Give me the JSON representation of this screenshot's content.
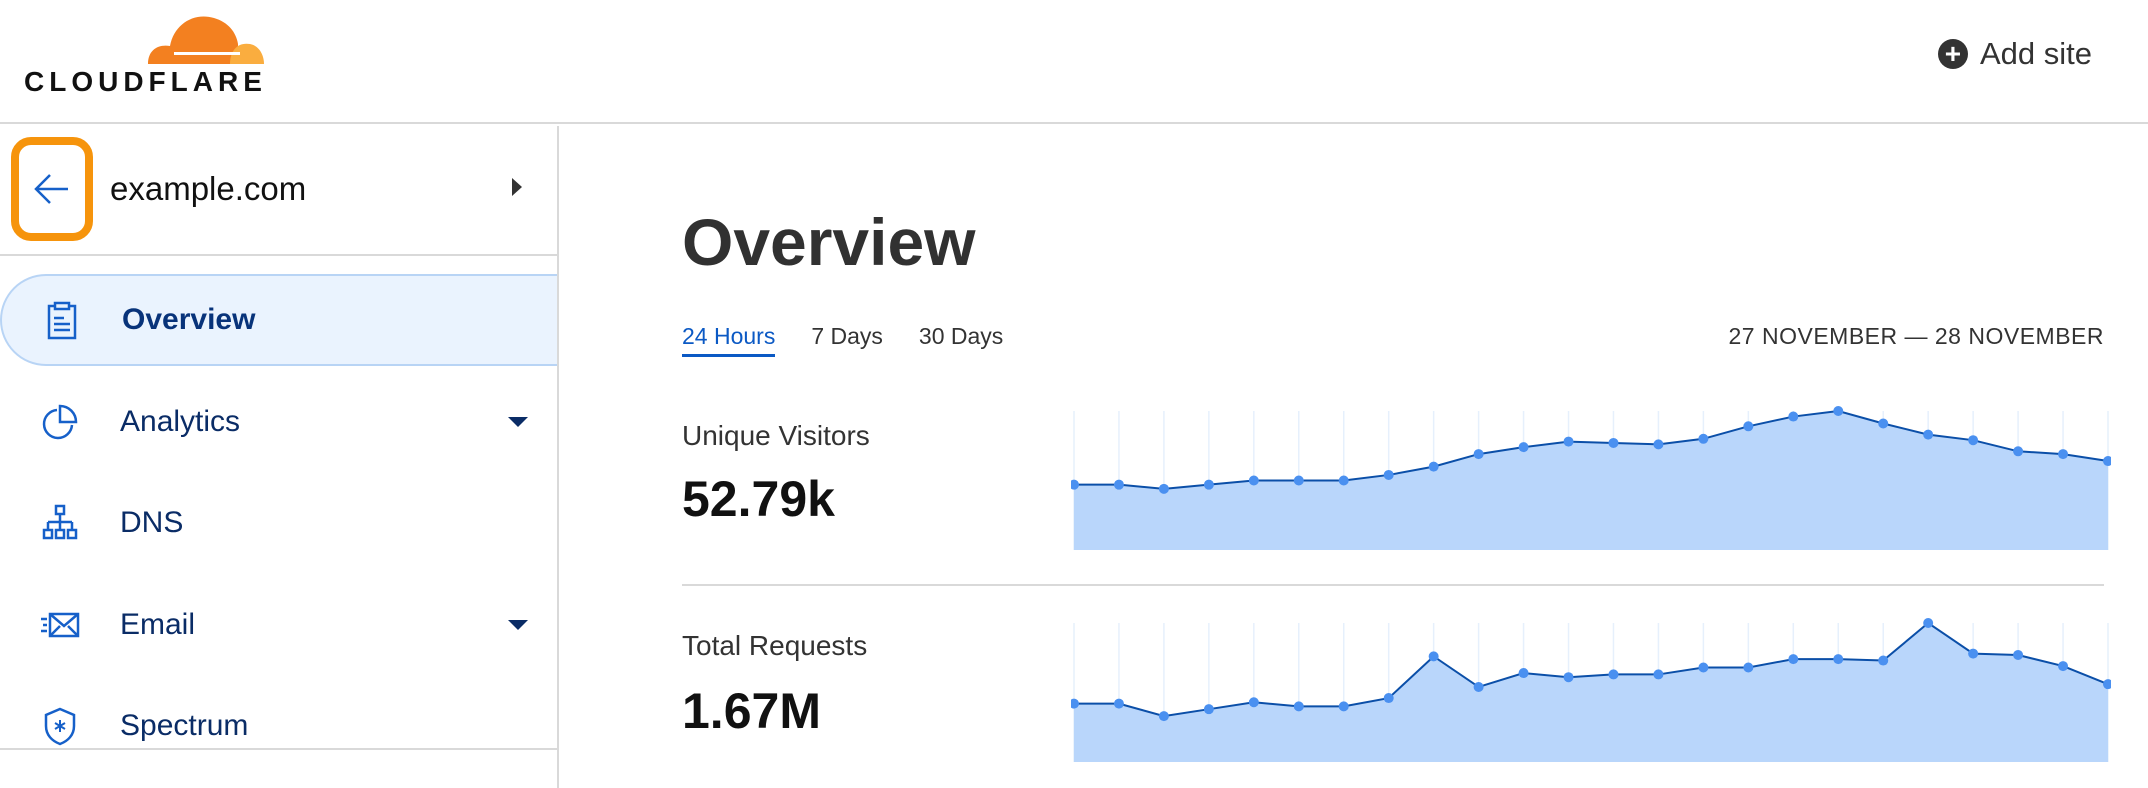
{
  "header": {
    "logo_text": "CLOUDFLARE",
    "add_site_label": "Add site",
    "brand_color": "#f38020"
  },
  "sidebar": {
    "domain": "example.com",
    "back_icon": "arrow-left-icon",
    "items": [
      {
        "label": "Overview",
        "icon": "clipboard-icon",
        "active": true
      },
      {
        "label": "Analytics",
        "icon": "pie-chart-icon",
        "dropdown": true
      },
      {
        "label": "DNS",
        "icon": "sitemap-icon"
      },
      {
        "label": "Email",
        "icon": "email-icon",
        "dropdown": true
      },
      {
        "label": "Spectrum",
        "icon": "shield-icon"
      }
    ]
  },
  "main": {
    "title": "Overview",
    "tabs": [
      {
        "label": "24 Hours",
        "active": true
      },
      {
        "label": "7 Days"
      },
      {
        "label": "30 Days"
      }
    ],
    "date_range": "27 NOVEMBER — 28 NOVEMBER",
    "metrics": [
      {
        "label": "Unique Visitors",
        "value": "52.79k"
      },
      {
        "label": "Total Requests",
        "value": "1.67M"
      }
    ]
  },
  "chart_data": [
    {
      "type": "area",
      "ylim": [
        0,
        100
      ],
      "grid": "vertical",
      "colors": {
        "fill": "#b9d6fb",
        "line": "#0b4fa8",
        "point": "#4a90f0"
      },
      "values": [
        47,
        47,
        44,
        47,
        50,
        50,
        50,
        54,
        60,
        69,
        74,
        78,
        77,
        76,
        80,
        89,
        96,
        100,
        91,
        83,
        79,
        71,
        69,
        64
      ]
    },
    {
      "type": "area",
      "ylim": [
        0,
        100
      ],
      "grid": "vertical",
      "colors": {
        "fill": "#b9d6fb",
        "line": "#0b4fa8",
        "point": "#4a90f0"
      },
      "values": [
        42,
        42,
        33,
        38,
        43,
        40,
        40,
        46,
        76,
        54,
        64,
        61,
        63,
        63,
        68,
        68,
        74,
        74,
        73,
        100,
        78,
        77,
        69,
        56
      ]
    }
  ]
}
